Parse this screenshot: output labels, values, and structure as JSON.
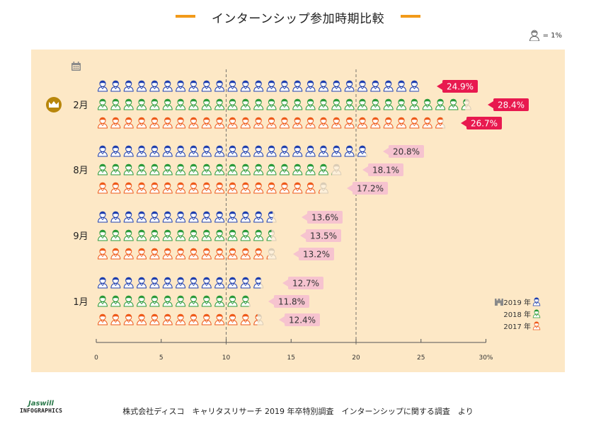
{
  "title": "インターンシップ参加時期比較",
  "unit_legend": "= 1%",
  "footer": {
    "logo_name": "Jaswill",
    "logo_sub": "INFOGRAPHICS",
    "source": "株式会社ディスコ　キャリタスリサーチ 2019 年卒特別調査　インターンシップに関する調査　より"
  },
  "colors": {
    "y2019": "#1f3fae",
    "y2018": "#2a9a3a",
    "y2017": "#ee5a1a",
    "top_label": "#e8194f",
    "other_label": "#f6c3cf",
    "panel": "#fde8c6",
    "crown": "#b8860b"
  },
  "chart_data": {
    "type": "bar",
    "orientation": "horizontal",
    "unit": "%",
    "xlim": [
      0,
      30
    ],
    "x_ticks": [
      "0",
      "5",
      "10",
      "15",
      "20",
      "25",
      "30%"
    ],
    "reference_lines": [
      10,
      20
    ],
    "categories": [
      "2月",
      "8月",
      "9月",
      "1月"
    ],
    "highlight_category": "2月",
    "series": [
      {
        "name": "2019 年",
        "values": [
          24.9,
          20.8,
          13.6,
          12.7
        ]
      },
      {
        "name": "2018 年",
        "values": [
          28.4,
          18.1,
          13.5,
          11.8
        ]
      },
      {
        "name": "2017 年",
        "values": [
          26.7,
          17.2,
          13.2,
          12.4
        ]
      }
    ],
    "legend_position": "right"
  }
}
